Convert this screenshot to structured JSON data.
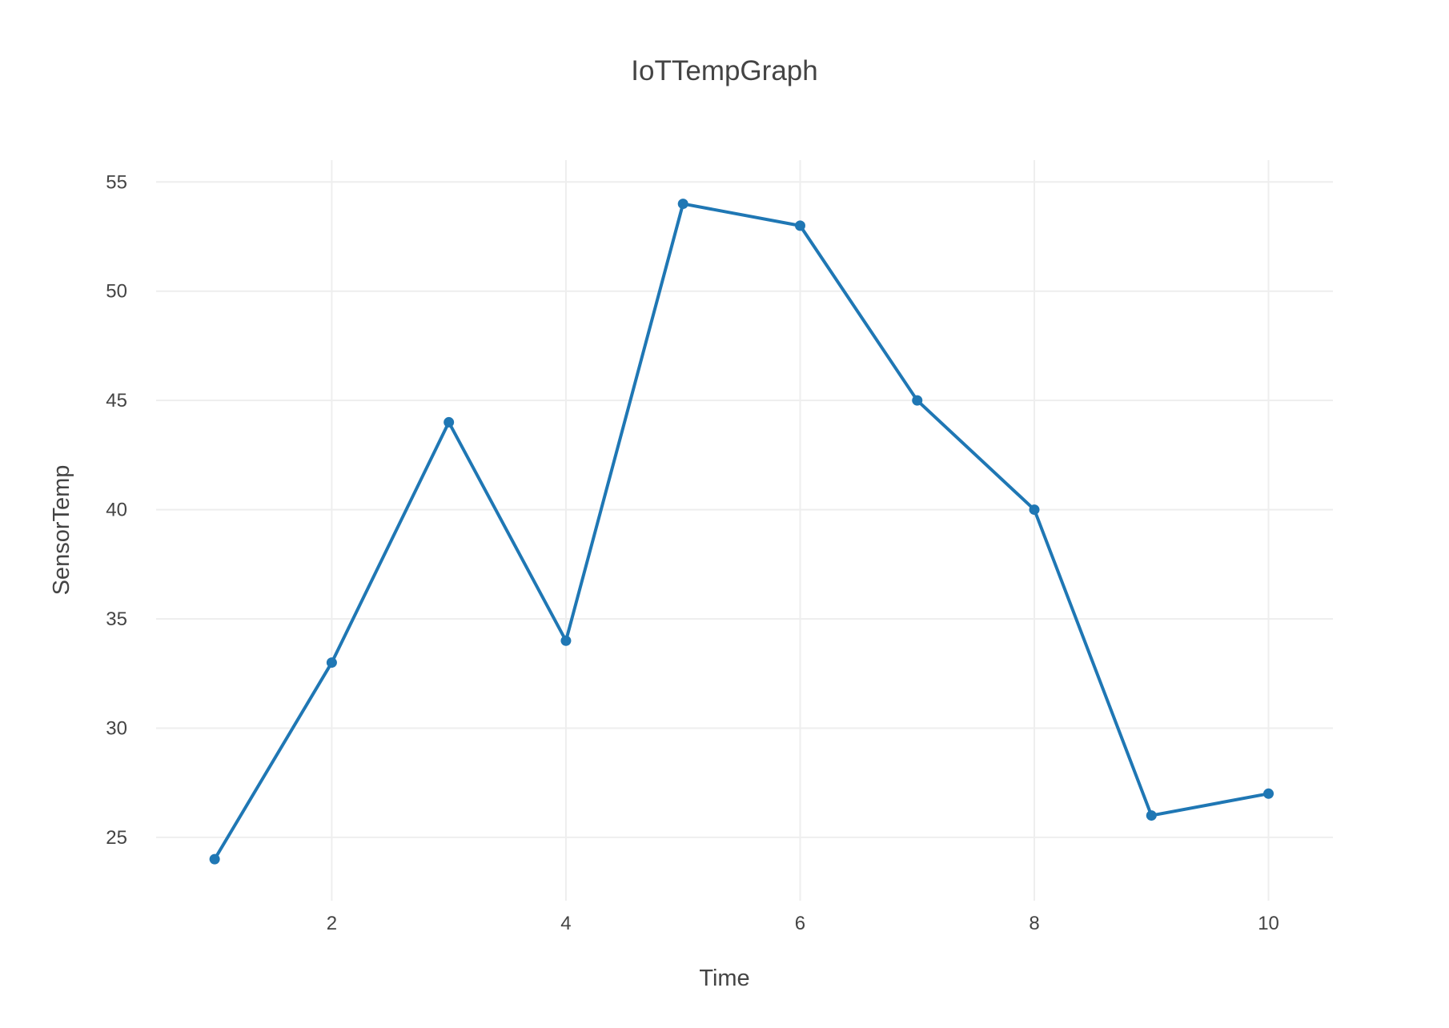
{
  "chart_data": {
    "type": "line",
    "title": "IoTTempGraph",
    "xlabel": "Time",
    "ylabel": "SensorTemp",
    "x": [
      1,
      2,
      3,
      4,
      5,
      6,
      7,
      8,
      9,
      10
    ],
    "series": [
      {
        "values": [
          24,
          33,
          44,
          34,
          54,
          53,
          45,
          40,
          26,
          27
        ],
        "color": "#1f77b4",
        "markers": true
      }
    ],
    "xlim": [
      0.5,
      10.55
    ],
    "ylim": [
      22.1,
      56
    ],
    "x_ticks": [
      2,
      4,
      6,
      8,
      10
    ],
    "y_ticks": [
      25,
      30,
      35,
      40,
      45,
      50,
      55
    ],
    "grid": true,
    "legend": "none"
  }
}
